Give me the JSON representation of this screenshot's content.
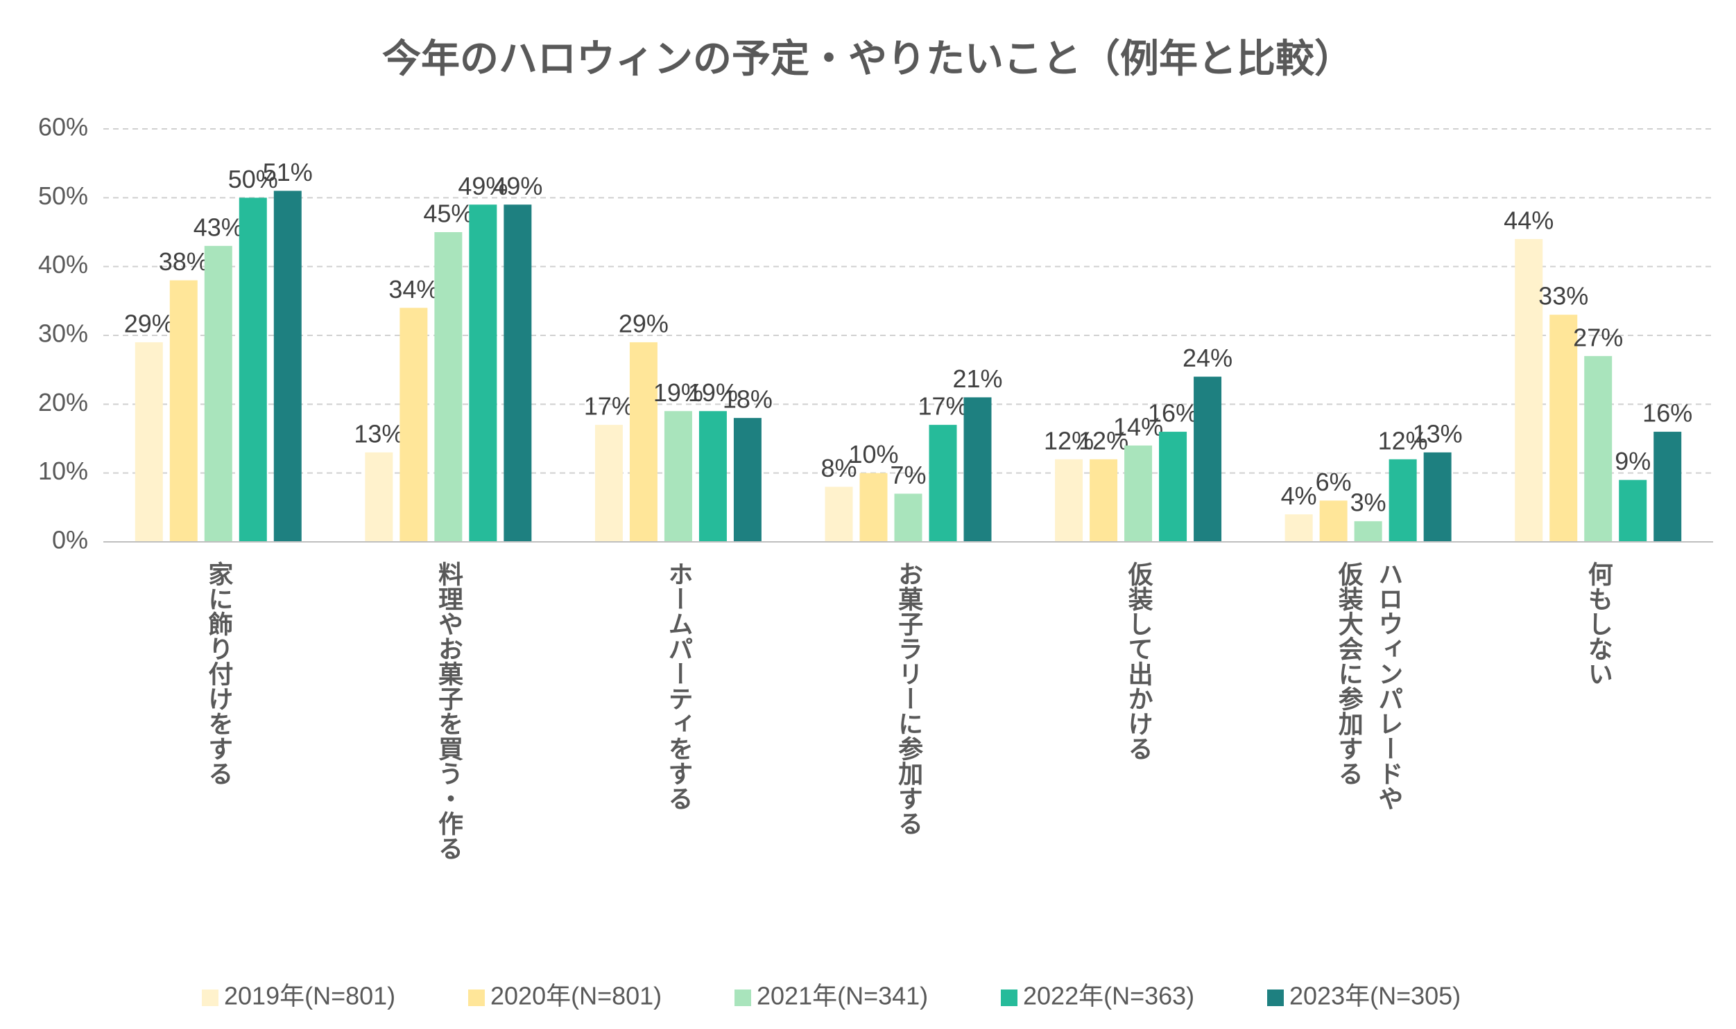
{
  "chart_data": {
    "type": "bar",
    "title": "今年のハロウィンの予定・やりたいこと（例年と比較）",
    "categories": [
      "家に飾り付けをする",
      "料理やお菓子を買う・作る",
      "ホームパーティをする",
      "お菓子ラリーに参加する",
      "仮装して出かける",
      "ハロウィンパレードや\n仮装大会に参加する",
      "何もしない"
    ],
    "series": [
      {
        "name": "2019年(N=801)",
        "color": "#FFF2CC",
        "values": [
          29,
          13,
          17,
          8,
          12,
          4,
          44
        ]
      },
      {
        "name": "2020年(N=801)",
        "color": "#FFE699",
        "values": [
          38,
          34,
          29,
          10,
          12,
          6,
          33
        ]
      },
      {
        "name": "2021年(N=341)",
        "color": "#A9E4BC",
        "values": [
          43,
          45,
          19,
          7,
          14,
          3,
          27
        ]
      },
      {
        "name": "2022年(N=363)",
        "color": "#26BB9A",
        "values": [
          50,
          49,
          19,
          17,
          16,
          12,
          9
        ]
      },
      {
        "name": "2023年(N=305)",
        "color": "#1E8080",
        "values": [
          51,
          49,
          18,
          21,
          24,
          13,
          16
        ]
      }
    ],
    "value_labels": [
      [
        "29%",
        "13%",
        "17%",
        "8%",
        "12%",
        "4%",
        "44%"
      ],
      [
        "38%",
        "34%",
        "29%",
        "10%",
        "12%",
        "6%",
        "33%"
      ],
      [
        "43%",
        "45%",
        "19%",
        "7%",
        "14%",
        "3%",
        "27%"
      ],
      [
        "50%",
        "49%",
        "19%",
        "17%",
        "16%",
        "12%",
        "9%"
      ],
      [
        "51%",
        "49%",
        "18%",
        "21%",
        "24%",
        "13%",
        "16%"
      ]
    ],
    "ylim": [
      0,
      60
    ],
    "yticks": [
      {
        "value": 0,
        "label": "0%"
      },
      {
        "value": 10,
        "label": "10%"
      },
      {
        "value": 20,
        "label": "20%"
      },
      {
        "value": 30,
        "label": "30%"
      },
      {
        "value": 40,
        "label": "40%"
      },
      {
        "value": 50,
        "label": "50%"
      },
      {
        "value": 60,
        "label": "60%"
      }
    ],
    "grid": true
  }
}
